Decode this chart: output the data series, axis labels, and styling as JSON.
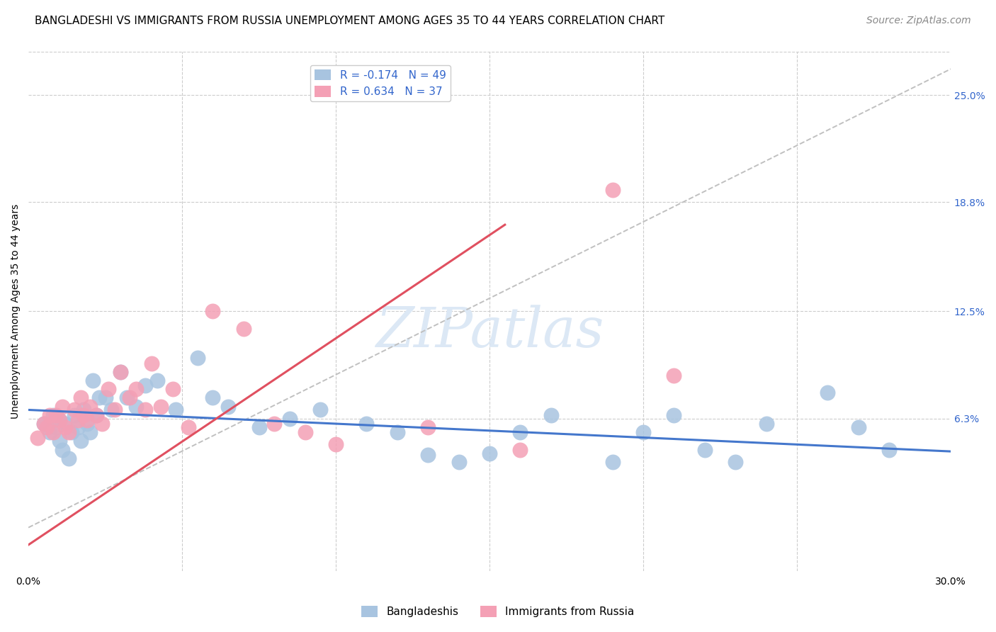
{
  "title": "BANGLADESHI VS IMMIGRANTS FROM RUSSIA UNEMPLOYMENT AMONG AGES 35 TO 44 YEARS CORRELATION CHART",
  "source": "Source: ZipAtlas.com",
  "ylabel": "Unemployment Among Ages 35 to 44 years",
  "ytick_labels": [
    "25.0%",
    "18.8%",
    "12.5%",
    "6.3%"
  ],
  "ytick_values": [
    0.25,
    0.188,
    0.125,
    0.063
  ],
  "xlim": [
    0.0,
    0.3
  ],
  "ylim": [
    -0.025,
    0.275
  ],
  "blue_R": -0.174,
  "blue_N": 49,
  "pink_R": 0.634,
  "pink_N": 37,
  "blue_color": "#a8c4e0",
  "pink_color": "#f4a0b5",
  "blue_line_color": "#4477cc",
  "pink_line_color": "#e05060",
  "dashed_line_color": "#c0c0c0",
  "background_color": "#ffffff",
  "watermark_text": "ZIPatlas",
  "watermark_color": "#dce8f5",
  "blue_x": [
    0.005,
    0.007,
    0.008,
    0.009,
    0.01,
    0.01,
    0.011,
    0.012,
    0.013,
    0.014,
    0.015,
    0.016,
    0.017,
    0.018,
    0.019,
    0.02,
    0.021,
    0.022,
    0.023,
    0.025,
    0.027,
    0.03,
    0.032,
    0.035,
    0.038,
    0.042,
    0.048,
    0.055,
    0.06,
    0.065,
    0.075,
    0.085,
    0.095,
    0.11,
    0.12,
    0.13,
    0.14,
    0.15,
    0.16,
    0.17,
    0.19,
    0.2,
    0.21,
    0.22,
    0.23,
    0.24,
    0.26,
    0.27,
    0.28
  ],
  "blue_y": [
    0.06,
    0.055,
    0.065,
    0.058,
    0.062,
    0.05,
    0.045,
    0.06,
    0.04,
    0.055,
    0.065,
    0.058,
    0.05,
    0.068,
    0.06,
    0.055,
    0.085,
    0.065,
    0.075,
    0.075,
    0.068,
    0.09,
    0.075,
    0.07,
    0.082,
    0.085,
    0.068,
    0.098,
    0.075,
    0.07,
    0.058,
    0.063,
    0.068,
    0.06,
    0.055,
    0.042,
    0.038,
    0.043,
    0.055,
    0.065,
    0.038,
    0.055,
    0.065,
    0.045,
    0.038,
    0.06,
    0.078,
    0.058,
    0.045
  ],
  "pink_x": [
    0.003,
    0.005,
    0.006,
    0.007,
    0.008,
    0.009,
    0.01,
    0.011,
    0.012,
    0.013,
    0.015,
    0.016,
    0.017,
    0.018,
    0.019,
    0.02,
    0.022,
    0.024,
    0.026,
    0.028,
    0.03,
    0.033,
    0.035,
    0.038,
    0.04,
    0.043,
    0.047,
    0.052,
    0.06,
    0.07,
    0.08,
    0.09,
    0.1,
    0.13,
    0.16,
    0.19,
    0.21
  ],
  "pink_y": [
    0.052,
    0.06,
    0.058,
    0.065,
    0.055,
    0.065,
    0.062,
    0.07,
    0.058,
    0.055,
    0.068,
    0.062,
    0.075,
    0.065,
    0.062,
    0.07,
    0.065,
    0.06,
    0.08,
    0.068,
    0.09,
    0.075,
    0.08,
    0.068,
    0.095,
    0.07,
    0.08,
    0.058,
    0.125,
    0.115,
    0.06,
    0.055,
    0.048,
    0.058,
    0.045,
    0.195,
    0.088
  ],
  "title_fontsize": 11,
  "axis_label_fontsize": 10,
  "tick_fontsize": 10,
  "legend_fontsize": 11,
  "source_fontsize": 10
}
